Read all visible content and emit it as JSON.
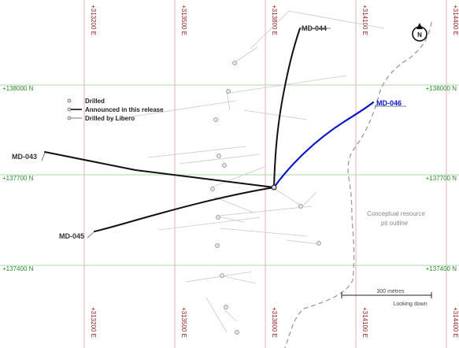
{
  "grid": {
    "eastings": [
      "+313200 E",
      "+313500 E",
      "+313800 E",
      "+314100 E",
      "+314400 E"
    ],
    "northings": [
      "+138000 N",
      "+137700 N",
      "+137400 N"
    ]
  },
  "legend": {
    "items": [
      {
        "label": "Drilled",
        "style": "dot"
      },
      {
        "label": "Announced in this release",
        "style": "dot-line"
      },
      {
        "label": "Drilled by Libero",
        "style": "dot-line-thin"
      }
    ]
  },
  "holes": {
    "md043": "MD-043",
    "md044": "MD-044",
    "md045": "MD-045",
    "md046": "MD-046"
  },
  "pit_outline_label": {
    "line1": "Conceptual resource",
    "line2": "pit outline"
  },
  "scale_bar": {
    "label": "300 metres",
    "view": "Looking down"
  },
  "north_arrow": {
    "letter": "N"
  },
  "colors": {
    "easting_grid": "#e6b3b3",
    "northing_grid": "#a8dca8",
    "announced_hole": "#111111",
    "highlight_hole": "#0a14c8",
    "pit_outline": "#9a9a9a"
  }
}
